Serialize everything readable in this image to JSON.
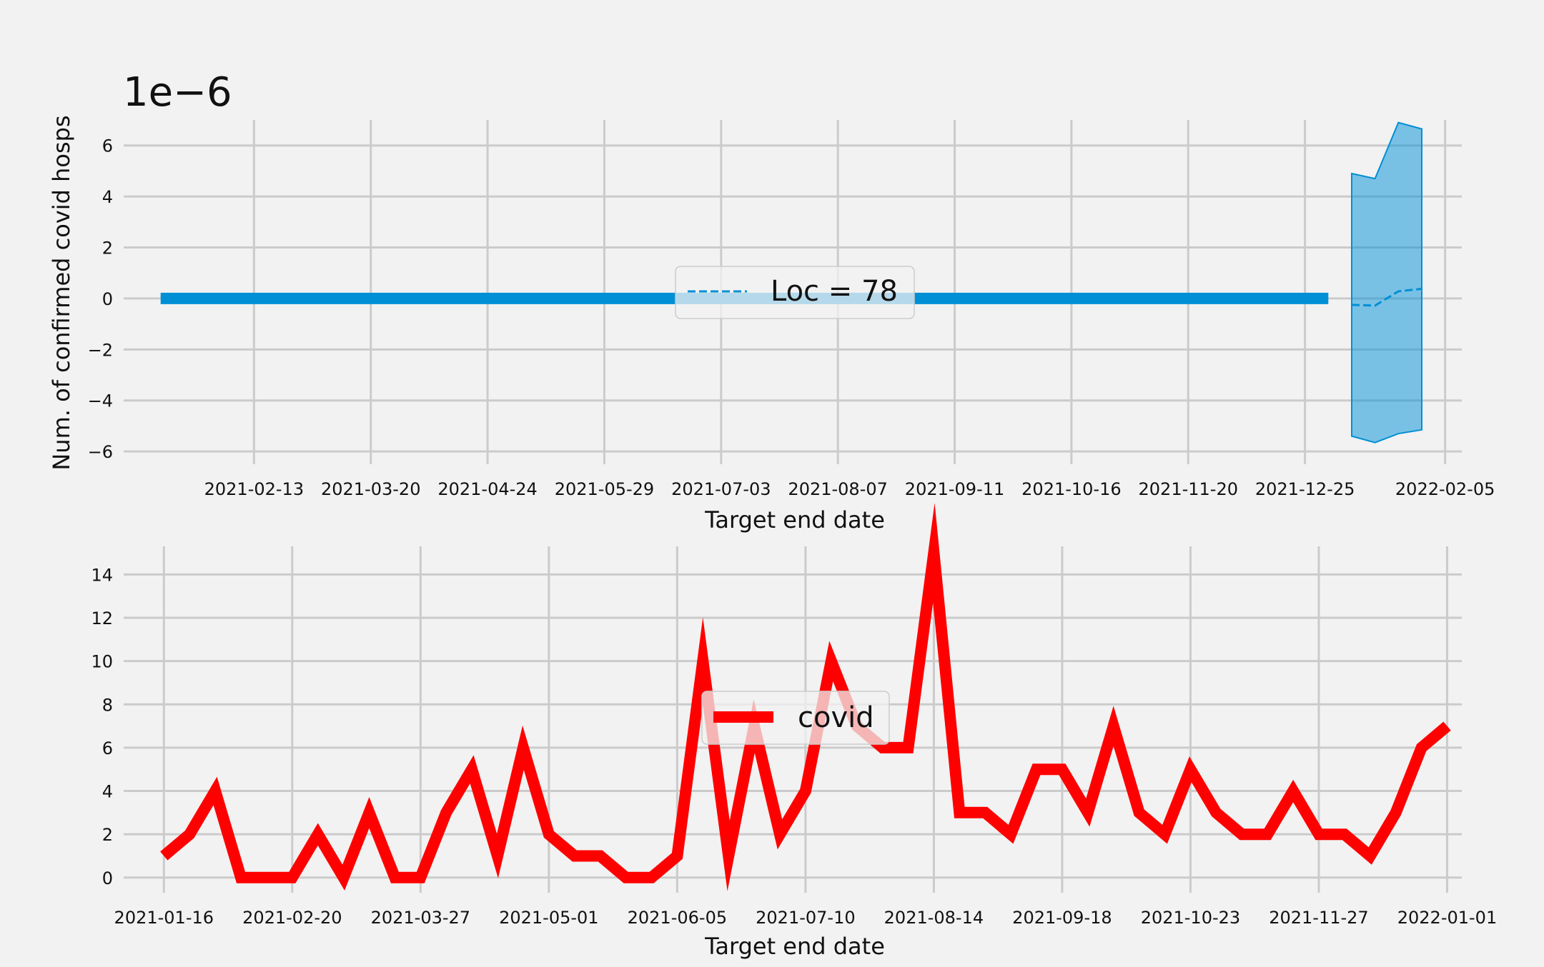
{
  "chart_data": [
    {
      "type": "line",
      "xlabel": "Target end date",
      "ylabel": "Num. of confirmed covid hosps",
      "offset_text": "1e−6",
      "ylim": [
        -6.5,
        7.0
      ],
      "yticks": [
        -6,
        -4,
        -2,
        0,
        2,
        4,
        6
      ],
      "ytick_labels": [
        "−6",
        "−4",
        "−2",
        "0",
        "2",
        "4",
        "6"
      ],
      "xlim": [
        "2021-01-06",
        "2022-02-10"
      ],
      "xticks": [
        "2021-02-13",
        "2021-03-20",
        "2021-04-24",
        "2021-05-29",
        "2021-07-03",
        "2021-08-07",
        "2021-09-11",
        "2021-10-16",
        "2021-11-20",
        "2021-12-25",
        "2022-02-05"
      ],
      "grid": true,
      "legend_position": "center",
      "colors": {
        "line": "#008fd5",
        "band": "#008fd5"
      },
      "series": [
        {
          "name": "",
          "style": "solid",
          "x": [
            "2021-01-16",
            "2022-01-01"
          ],
          "y": [
            0,
            0
          ]
        },
        {
          "name": "Loc = 78",
          "style": "dashed",
          "x": [
            "2022-01-08",
            "2022-01-15",
            "2022-01-22",
            "2022-01-29"
          ],
          "y": [
            -0.25,
            -0.28,
            0.28,
            0.38
          ]
        }
      ],
      "band": {
        "x": [
          "2022-01-08",
          "2022-01-15",
          "2022-01-22",
          "2022-01-29"
        ],
        "lower": [
          -5.4,
          -5.65,
          -5.3,
          -5.15
        ],
        "upper": [
          4.9,
          4.7,
          6.9,
          6.65
        ]
      }
    },
    {
      "type": "line",
      "xlabel": "Target end date",
      "ylim": [
        -0.7,
        15.3
      ],
      "yticks": [
        0,
        2,
        4,
        6,
        8,
        10,
        12,
        14
      ],
      "xlim": [
        "2021-01-06",
        "2022-01-05"
      ],
      "xticks": [
        "2021-01-16",
        "2021-02-20",
        "2021-03-27",
        "2021-05-01",
        "2021-06-05",
        "2021-07-10",
        "2021-08-14",
        "2021-09-18",
        "2021-10-23",
        "2021-11-27",
        "2022-01-01"
      ],
      "grid": true,
      "legend_position": "center",
      "colors": {
        "line": "#ff0000"
      },
      "series": [
        {
          "name": "covid",
          "x_start": "2021-01-16",
          "x_step_days": 7,
          "y": [
            1,
            2,
            4,
            0,
            0,
            0,
            2,
            0,
            3,
            0,
            0,
            3,
            5,
            1,
            6,
            2,
            1,
            1,
            0,
            0,
            1,
            10,
            1,
            7,
            2,
            4,
            10,
            7,
            6,
            6,
            15,
            3,
            3,
            2,
            5,
            5,
            3,
            7,
            3,
            2,
            5,
            3,
            2,
            2,
            4,
            2,
            2,
            1,
            3,
            6,
            7
          ]
        }
      ]
    }
  ]
}
